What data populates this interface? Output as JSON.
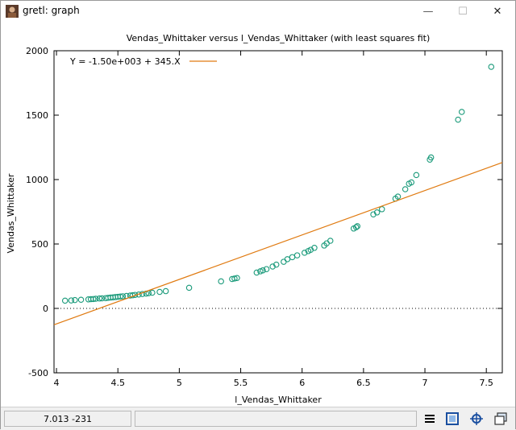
{
  "window": {
    "title": "gretl: graph",
    "minimize_glyph": "—",
    "maximize_glyph": "☐",
    "close_glyph": "✕"
  },
  "status": {
    "coords": "7.013 -231"
  },
  "toolbar": {
    "icons": [
      "menu-icon",
      "zoom-icon",
      "fit-icon",
      "restore-icon"
    ]
  },
  "colors": {
    "points": "#1a9a7a",
    "fit_line": "#e07a10",
    "axis": "#000000"
  },
  "chart_data": {
    "type": "scatter",
    "title": "Vendas_Whittaker versus l_Vendas_Whittaker (with least squares fit)",
    "xlabel": "l_Vendas_Whittaker",
    "ylabel": "Vendas_Whittaker",
    "xlim": [
      3.98,
      7.63
    ],
    "ylim": [
      -500,
      2000
    ],
    "xticks": [
      4,
      4.5,
      5,
      5.5,
      6,
      6.5,
      7,
      7.5
    ],
    "xtick_labels": [
      "4",
      "4.5",
      "5",
      "5.5",
      "6",
      "6.5",
      "7",
      "7.5"
    ],
    "yticks": [
      -500,
      0,
      500,
      1000,
      1500,
      2000
    ],
    "ytick_labels": [
      "-500",
      "0",
      "500",
      "1000",
      "1500",
      "2000"
    ],
    "legend": "Y = -1.50e+003 + 345.X",
    "legend_position": "top-left",
    "fit": {
      "intercept": -1500,
      "slope": 345
    },
    "zero_line": true,
    "points": [
      [
        4.07,
        60
      ],
      [
        4.12,
        62
      ],
      [
        4.15,
        65
      ],
      [
        4.2,
        67
      ],
      [
        4.26,
        70
      ],
      [
        4.28,
        72
      ],
      [
        4.3,
        73
      ],
      [
        4.32,
        75
      ],
      [
        4.35,
        77
      ],
      [
        4.37,
        78
      ],
      [
        4.4,
        80
      ],
      [
        4.42,
        82
      ],
      [
        4.44,
        84
      ],
      [
        4.46,
        86
      ],
      [
        4.48,
        88
      ],
      [
        4.5,
        90
      ],
      [
        4.52,
        92
      ],
      [
        4.54,
        94
      ],
      [
        4.57,
        97
      ],
      [
        4.6,
        100
      ],
      [
        4.62,
        102
      ],
      [
        4.64,
        105
      ],
      [
        4.67,
        108
      ],
      [
        4.7,
        112
      ],
      [
        4.73,
        115
      ],
      [
        4.75,
        118
      ],
      [
        4.78,
        122
      ],
      [
        4.84,
        128
      ],
      [
        4.89,
        134
      ],
      [
        5.08,
        160
      ],
      [
        5.34,
        210
      ],
      [
        5.43,
        228
      ],
      [
        5.45,
        232
      ],
      [
        5.47,
        236
      ],
      [
        5.63,
        278
      ],
      [
        5.66,
        288
      ],
      [
        5.68,
        295
      ],
      [
        5.71,
        305
      ],
      [
        5.76,
        325
      ],
      [
        5.79,
        340
      ],
      [
        5.85,
        362
      ],
      [
        5.88,
        382
      ],
      [
        5.92,
        398
      ],
      [
        5.96,
        412
      ],
      [
        6.02,
        432
      ],
      [
        6.05,
        445
      ],
      [
        6.07,
        455
      ],
      [
        6.1,
        470
      ],
      [
        6.18,
        488
      ],
      [
        6.2,
        505
      ],
      [
        6.23,
        525
      ],
      [
        6.42,
        620
      ],
      [
        6.44,
        630
      ],
      [
        6.45,
        638
      ],
      [
        6.58,
        730
      ],
      [
        6.61,
        745
      ],
      [
        6.65,
        770
      ],
      [
        6.76,
        852
      ],
      [
        6.78,
        868
      ],
      [
        6.84,
        925
      ],
      [
        6.87,
        968
      ],
      [
        6.89,
        978
      ],
      [
        6.93,
        1035
      ],
      [
        7.04,
        1155
      ],
      [
        7.05,
        1172
      ],
      [
        7.27,
        1465
      ],
      [
        7.3,
        1525
      ],
      [
        7.54,
        1875
      ]
    ]
  }
}
